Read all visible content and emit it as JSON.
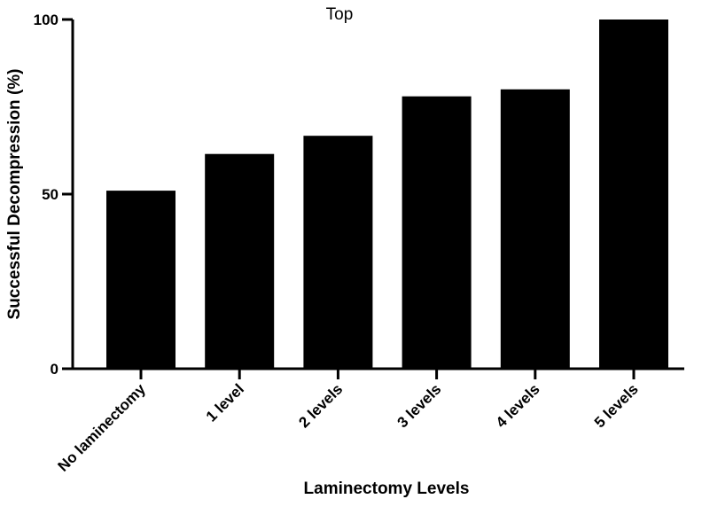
{
  "chart_data": {
    "type": "bar",
    "title": "Top",
    "xlabel": "Laminectomy Levels",
    "ylabel": "Successful Decompression (%)",
    "categories": [
      "No laminectomy",
      "1 level",
      "2 levels",
      "3 levels",
      "4 levels",
      "5 levels"
    ],
    "values": [
      51,
      61.5,
      66.7,
      78,
      80,
      100
    ],
    "ylim": [
      0,
      100
    ],
    "yticks": [
      0,
      50,
      100
    ],
    "bar_color": "#000000",
    "grid": false,
    "legend": "none"
  }
}
